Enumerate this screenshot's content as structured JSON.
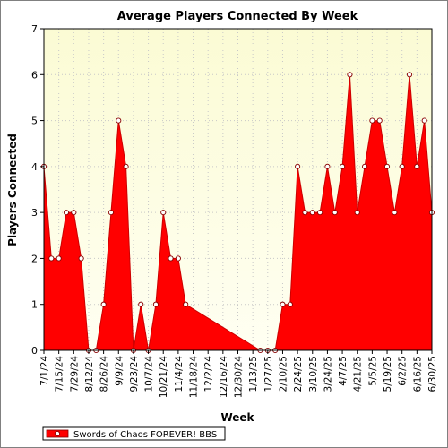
{
  "chart_data": {
    "type": "area",
    "title": "Average Players Connected By Week",
    "xlabel": "Week",
    "ylabel": "Players Connected",
    "ylim": [
      0,
      7
    ],
    "yticks": [
      0,
      1,
      2,
      3,
      4,
      5,
      6,
      7
    ],
    "grid": true,
    "legend": "bottom-left",
    "x_tick_labels": [
      "7/1/24",
      "7/15/24",
      "7/29/24",
      "8/12/24",
      "8/26/24",
      "9/9/24",
      "9/23/24",
      "10/7/24",
      "10/21/24",
      "11/4/24",
      "11/18/24",
      "12/2/24",
      "12/16/24",
      "12/30/24",
      "1/13/25",
      "1/27/25",
      "2/10/25",
      "2/24/25",
      "3/10/25",
      "3/24/25",
      "4/7/25",
      "4/21/25",
      "5/5/25",
      "5/19/25",
      "6/2/25",
      "6/16/25",
      "6/30/25"
    ],
    "x": [
      "7/1/24",
      "7/8/24",
      "7/15/24",
      "7/22/24",
      "7/29/24",
      "8/5/24",
      "8/12/24",
      "8/19/24",
      "8/26/24",
      "9/2/24",
      "9/9/24",
      "9/16/24",
      "9/23/24",
      "9/30/24",
      "10/7/24",
      "10/14/24",
      "10/21/24",
      "10/28/24",
      "11/4/24",
      "11/11/24",
      "1/20/25",
      "1/27/25",
      "2/3/25",
      "2/10/25",
      "2/17/25",
      "2/24/25",
      "3/3/25",
      "3/10/25",
      "3/17/25",
      "3/24/25",
      "3/31/25",
      "4/7/25",
      "4/14/25",
      "4/21/25",
      "4/28/25",
      "5/5/25",
      "5/12/25",
      "5/19/25",
      "5/26/25",
      "6/2/25",
      "6/9/25",
      "6/16/25",
      "6/23/25",
      "6/30/25"
    ],
    "series": [
      {
        "name": "Swords of Chaos FOREVER! BBS",
        "color": "#ff0000",
        "values": [
          4,
          2,
          2,
          3,
          3,
          2,
          0,
          0,
          1,
          3,
          5,
          4,
          0,
          1,
          0,
          1,
          3,
          2,
          2,
          1,
          0,
          0,
          0,
          1,
          1,
          4,
          3,
          3,
          3,
          4,
          3,
          4,
          6,
          3,
          4,
          5,
          5,
          4,
          3,
          4,
          6,
          4,
          5,
          3
        ]
      }
    ]
  }
}
